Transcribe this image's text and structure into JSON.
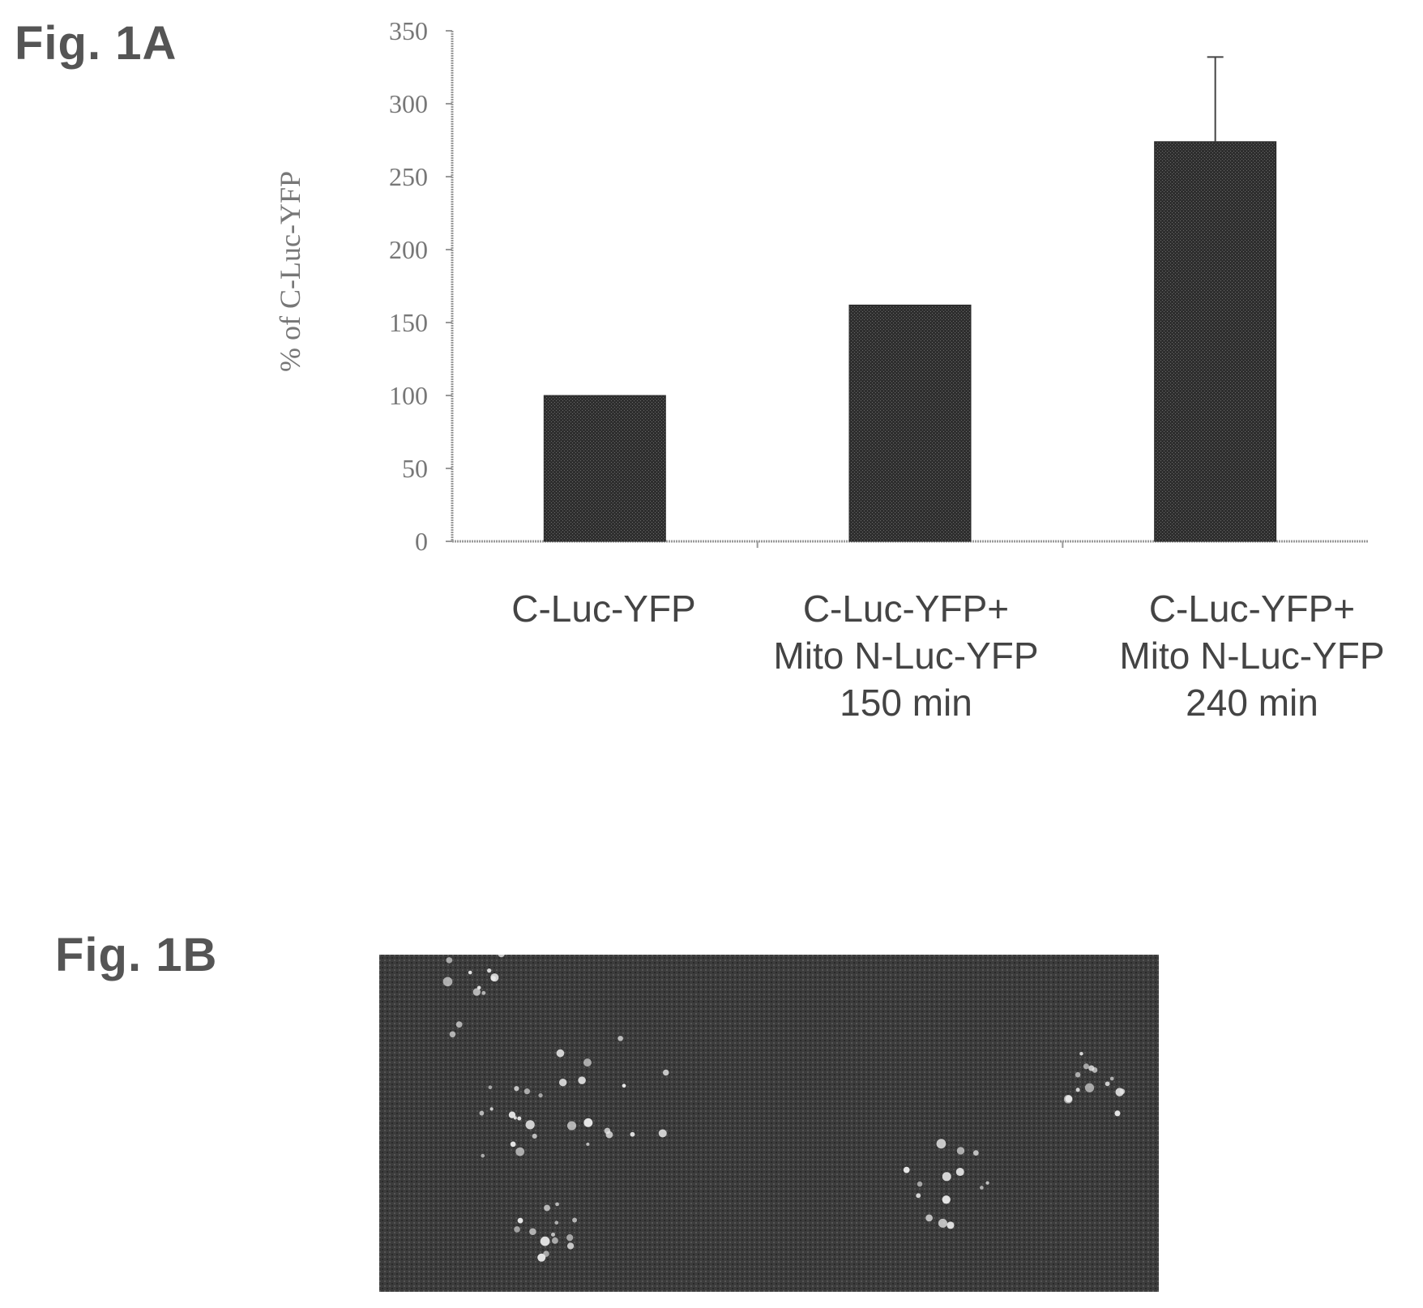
{
  "figure_a": {
    "label": "Fig. 1A"
  },
  "figure_b": {
    "label": "Fig. 1B",
    "image": "fluorescence-micrograph"
  },
  "chart_data": {
    "type": "bar",
    "title": "",
    "xlabel": "",
    "ylabel": "% of C-Luc-YFP",
    "ylim": [
      0,
      350
    ],
    "yticks": [
      0,
      50,
      100,
      150,
      200,
      250,
      300,
      350
    ],
    "grid": false,
    "bar_color": "#3d3d3d",
    "categories": [
      [
        "C-Luc-YFP"
      ],
      [
        "C-Luc-YFP+",
        "Mito N-Luc-YFP",
        "150 min"
      ],
      [
        "C-Luc-YFP+",
        "Mito N-Luc-YFP",
        "240 min"
      ]
    ],
    "values": [
      100,
      162,
      274
    ],
    "error_upper": [
      null,
      null,
      58
    ]
  }
}
